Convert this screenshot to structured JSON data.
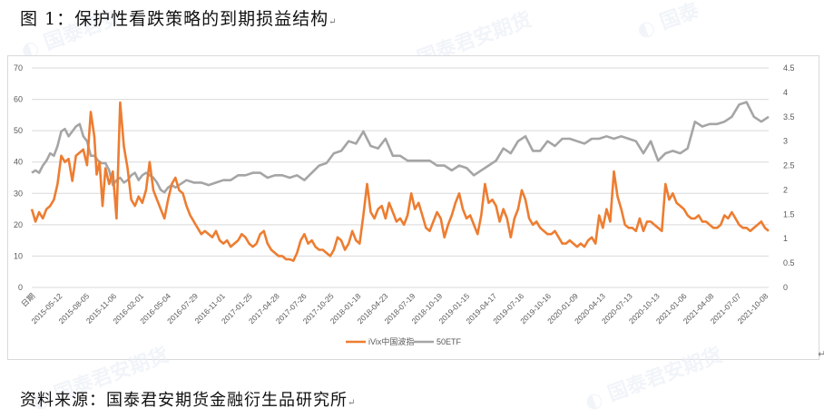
{
  "figure": {
    "title": "图 1：保护性看跌策略的到期损益结构",
    "source": "资料来源：国泰君安期货金融衍生品研究所",
    "paragraph_mark": "↵"
  },
  "colors": {
    "ivix": "#ED7D31",
    "etf50": "#A5A5A5",
    "grid": "#D9D9D9",
    "axis_text": "#595959"
  },
  "chart_data": {
    "type": "line",
    "title": "",
    "xlabel": "日期",
    "ylabel": "",
    "ylim": [
      0,
      70
    ],
    "y2lim": [
      0,
      4.5
    ],
    "grid": true,
    "legend_position": "bottom",
    "left_ticks": [
      "0",
      "10",
      "20",
      "30",
      "40",
      "50",
      "60",
      "70"
    ],
    "right_ticks": [
      "0",
      "0.5",
      "1",
      "1.5",
      "2",
      "2.5",
      "3",
      "3.5",
      "4",
      "4.5"
    ],
    "x_ticks": [
      "日期",
      "2015-05-12",
      "2015-08-05",
      "2015-11-06",
      "2016-02-01",
      "2016-05-04",
      "2016-07-29",
      "2016-11-01",
      "2017-01-25",
      "2017-04-28",
      "2017-07-26",
      "2017-10-25",
      "2018-01-18",
      "2018-04-23",
      "2018-07-19",
      "2018-10-19",
      "2019-01-15",
      "2019-04-17",
      "2019-07-16",
      "2019-10-16",
      "2020-01-09",
      "2020-04-13",
      "2020-07-13",
      "2020-10-13",
      "2021-01-06",
      "2021-04-08",
      "2021-07-07",
      "2021-10-08"
    ],
    "series": [
      {
        "name": "iVix中国波指",
        "axis": "left",
        "x_frac": [
          0,
          0.005,
          0.01,
          0.015,
          0.02,
          0.025,
          0.03,
          0.035,
          0.04,
          0.045,
          0.05,
          0.055,
          0.06,
          0.065,
          0.07,
          0.075,
          0.08,
          0.085,
          0.088,
          0.092,
          0.096,
          0.1,
          0.105,
          0.11,
          0.115,
          0.12,
          0.125,
          0.13,
          0.135,
          0.14,
          0.145,
          0.15,
          0.155,
          0.16,
          0.165,
          0.17,
          0.175,
          0.18,
          0.185,
          0.19,
          0.195,
          0.2,
          0.205,
          0.21,
          0.215,
          0.22,
          0.225,
          0.23,
          0.235,
          0.24,
          0.245,
          0.25,
          0.255,
          0.26,
          0.265,
          0.27,
          0.275,
          0.28,
          0.285,
          0.29,
          0.295,
          0.3,
          0.305,
          0.31,
          0.315,
          0.32,
          0.325,
          0.33,
          0.335,
          0.34,
          0.345,
          0.35,
          0.355,
          0.36,
          0.365,
          0.37,
          0.375,
          0.38,
          0.385,
          0.39,
          0.395,
          0.4,
          0.405,
          0.41,
          0.415,
          0.42,
          0.425,
          0.43,
          0.435,
          0.44,
          0.445,
          0.45,
          0.455,
          0.46,
          0.465,
          0.47,
          0.475,
          0.48,
          0.485,
          0.49,
          0.495,
          0.5,
          0.505,
          0.51,
          0.515,
          0.52,
          0.525,
          0.53,
          0.535,
          0.54,
          0.545,
          0.55,
          0.555,
          0.56,
          0.565,
          0.57,
          0.575,
          0.58,
          0.585,
          0.59,
          0.595,
          0.6,
          0.605,
          0.61,
          0.615,
          0.62,
          0.625,
          0.63,
          0.635,
          0.64,
          0.645,
          0.65,
          0.655,
          0.66,
          0.665,
          0.67,
          0.675,
          0.68,
          0.685,
          0.69,
          0.695,
          0.7,
          0.705,
          0.71,
          0.715,
          0.72,
          0.725,
          0.73,
          0.735,
          0.74,
          0.745,
          0.75,
          0.755,
          0.76,
          0.765,
          0.77,
          0.775,
          0.78,
          0.785,
          0.79,
          0.795,
          0.8,
          0.805,
          0.81,
          0.815,
          0.82,
          0.825,
          0.83,
          0.835,
          0.84,
          0.845,
          0.85,
          0.855,
          0.86,
          0.865,
          0.87,
          0.875,
          0.88,
          0.885,
          0.89,
          0.895,
          0.9,
          0.905,
          0.91,
          0.915,
          0.92,
          0.925,
          0.93,
          0.935,
          0.94,
          0.945,
          0.95,
          0.955,
          0.96,
          0.965,
          0.97,
          0.975,
          0.98,
          0.985,
          0.99,
          0.995,
          1.0
        ],
        "values": [
          25,
          21,
          24,
          22,
          25,
          26,
          28,
          33,
          42,
          40,
          41,
          34,
          42,
          43,
          44,
          39,
          56,
          48,
          36,
          40,
          26,
          38,
          33,
          37,
          22,
          59,
          45,
          38,
          28,
          26,
          29,
          27,
          31,
          40,
          31,
          28,
          25,
          22,
          28,
          33,
          35,
          31,
          30,
          26,
          23,
          21,
          19,
          17,
          18,
          17,
          16,
          18,
          15,
          14,
          15,
          13,
          14,
          15,
          17,
          16,
          14,
          13,
          14,
          17,
          18,
          14,
          12,
          11,
          10,
          10,
          9,
          9,
          8.5,
          11,
          15,
          17,
          14,
          15,
          13,
          12,
          12,
          11,
          10,
          12,
          16,
          15,
          12,
          14,
          18,
          15,
          14,
          23,
          33,
          24,
          22,
          25,
          26,
          22,
          27,
          24,
          21,
          22,
          20,
          23,
          30,
          25,
          27,
          23,
          19,
          18,
          21,
          24,
          22,
          16,
          20,
          23,
          27,
          30,
          25,
          22,
          23,
          20,
          17,
          23,
          33,
          27,
          28,
          26,
          21,
          25,
          22,
          16,
          22,
          25,
          31,
          28,
          22,
          20,
          21,
          19,
          18,
          17,
          17,
          18,
          16,
          14,
          14,
          15,
          14,
          13,
          14,
          13,
          15,
          16,
          14,
          23,
          19,
          25,
          21,
          37,
          29,
          25,
          20,
          19,
          19,
          18,
          22,
          18,
          21,
          21,
          20,
          19,
          18,
          33,
          28,
          30,
          27,
          26,
          25,
          23,
          22,
          22,
          23,
          21,
          21,
          20,
          19,
          19,
          20,
          23,
          22,
          24,
          22,
          20,
          19,
          19,
          18,
          19,
          20,
          21,
          19,
          18,
          18,
          19,
          20,
          21,
          23,
          19,
          20,
          21,
          20,
          21,
          19,
          20,
          19
        ]
      },
      {
        "name": "50ETF",
        "axis": "right",
        "x_frac": [
          0,
          0.005,
          0.01,
          0.015,
          0.02,
          0.025,
          0.03,
          0.035,
          0.04,
          0.045,
          0.05,
          0.055,
          0.06,
          0.065,
          0.07,
          0.075,
          0.08,
          0.085,
          0.09,
          0.095,
          0.1,
          0.105,
          0.11,
          0.115,
          0.12,
          0.125,
          0.13,
          0.135,
          0.14,
          0.145,
          0.15,
          0.155,
          0.16,
          0.165,
          0.17,
          0.175,
          0.18,
          0.185,
          0.19,
          0.195,
          0.2,
          0.21,
          0.22,
          0.23,
          0.24,
          0.25,
          0.26,
          0.27,
          0.28,
          0.29,
          0.3,
          0.31,
          0.32,
          0.33,
          0.34,
          0.35,
          0.36,
          0.37,
          0.38,
          0.39,
          0.4,
          0.41,
          0.42,
          0.43,
          0.44,
          0.45,
          0.46,
          0.47,
          0.48,
          0.49,
          0.5,
          0.51,
          0.52,
          0.53,
          0.54,
          0.55,
          0.56,
          0.57,
          0.58,
          0.59,
          0.6,
          0.61,
          0.62,
          0.63,
          0.64,
          0.65,
          0.66,
          0.67,
          0.68,
          0.69,
          0.7,
          0.71,
          0.72,
          0.73,
          0.74,
          0.75,
          0.76,
          0.77,
          0.78,
          0.79,
          0.8,
          0.81,
          0.82,
          0.83,
          0.84,
          0.85,
          0.86,
          0.87,
          0.88,
          0.89,
          0.9,
          0.91,
          0.92,
          0.93,
          0.94,
          0.95,
          0.96,
          0.97,
          0.98,
          0.99,
          1.0
        ],
        "values": [
          2.35,
          2.4,
          2.35,
          2.5,
          2.6,
          2.75,
          2.7,
          2.9,
          3.2,
          3.25,
          3.1,
          3.2,
          3.3,
          3.35,
          3.1,
          3.0,
          2.7,
          2.7,
          2.6,
          2.55,
          2.55,
          2.4,
          2.1,
          2.2,
          2.25,
          2.15,
          2.2,
          2.3,
          2.35,
          2.2,
          2.3,
          2.35,
          2.3,
          2.25,
          2.15,
          2.0,
          1.95,
          2.05,
          2.1,
          2.05,
          2.1,
          2.2,
          2.15,
          2.15,
          2.1,
          2.15,
          2.2,
          2.2,
          2.3,
          2.3,
          2.35,
          2.35,
          2.25,
          2.3,
          2.3,
          2.25,
          2.3,
          2.2,
          2.35,
          2.5,
          2.55,
          2.75,
          2.8,
          3.0,
          2.95,
          3.2,
          2.9,
          2.85,
          3.05,
          2.7,
          2.7,
          2.6,
          2.6,
          2.6,
          2.6,
          2.5,
          2.5,
          2.4,
          2.5,
          2.45,
          2.3,
          2.4,
          2.5,
          2.6,
          2.85,
          2.75,
          3.0,
          3.1,
          2.8,
          2.8,
          3.0,
          2.9,
          3.05,
          3.05,
          3.0,
          2.95,
          3.05,
          3.05,
          3.1,
          3.05,
          3.1,
          3.05,
          3.0,
          2.75,
          3.0,
          2.6,
          2.75,
          2.8,
          2.75,
          2.85,
          3.4,
          3.3,
          3.35,
          3.35,
          3.4,
          3.5,
          3.75,
          3.8,
          3.5,
          3.4,
          3.5,
          3.45
        ]
      }
    ]
  },
  "legend": {
    "items": [
      {
        "label": "iVix中国波指"
      },
      {
        "label": "50ETF"
      }
    ]
  }
}
